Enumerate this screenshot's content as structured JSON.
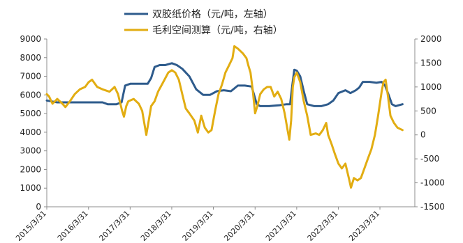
{
  "chart_data": {
    "type": "line",
    "legend": {
      "placement": "top-center"
    },
    "grid": false,
    "x_axis": {
      "type": "date",
      "range": [
        "2015-03-31",
        "2024-01-31"
      ],
      "tick_labels": [
        "2015/3/31",
        "2016/3/31",
        "2017/3/31",
        "2018/3/31",
        "2019/3/31",
        "2020/3/31",
        "2021/3/31",
        "2022/3/31",
        "2023/3/31"
      ]
    },
    "y_left": {
      "range": [
        0,
        9000
      ],
      "tick_labels": [
        "0",
        "1000",
        "2000",
        "3000",
        "4000",
        "5000",
        "6000",
        "7000",
        "8000",
        "9000"
      ]
    },
    "y_right": {
      "range": [
        -1500,
        2000
      ],
      "tick_labels": [
        "-1500",
        "-1000",
        "-500",
        "0",
        "500",
        "1000",
        "1500",
        "2000"
      ]
    },
    "series": [
      {
        "name": "双胶纸价格（元/吨，左轴）",
        "axis": "left",
        "color": "#2e5b8c",
        "points": [
          [
            "2015-03-31",
            5700
          ],
          [
            "2015-05-15",
            5650
          ],
          [
            "2015-07-01",
            5600
          ],
          [
            "2015-10-01",
            5600
          ],
          [
            "2016-01-01",
            5600
          ],
          [
            "2016-04-01",
            5600
          ],
          [
            "2016-08-01",
            5600
          ],
          [
            "2016-09-15",
            5500
          ],
          [
            "2016-12-01",
            5500
          ],
          [
            "2017-01-15",
            5600
          ],
          [
            "2017-02-15",
            6500
          ],
          [
            "2017-04-01",
            6600
          ],
          [
            "2017-06-01",
            6600
          ],
          [
            "2017-09-01",
            6600
          ],
          [
            "2017-10-01",
            6900
          ],
          [
            "2017-11-01",
            7500
          ],
          [
            "2017-12-15",
            7600
          ],
          [
            "2018-02-01",
            7600
          ],
          [
            "2018-04-01",
            7700
          ],
          [
            "2018-05-15",
            7600
          ],
          [
            "2018-07-01",
            7400
          ],
          [
            "2018-09-01",
            7000
          ],
          [
            "2018-11-01",
            6300
          ],
          [
            "2019-01-01",
            6000
          ],
          [
            "2019-03-01",
            6000
          ],
          [
            "2019-05-01",
            6200
          ],
          [
            "2019-07-01",
            6250
          ],
          [
            "2019-09-01",
            6200
          ],
          [
            "2019-11-01",
            6500
          ],
          [
            "2020-01-01",
            6500
          ],
          [
            "2020-03-01",
            6450
          ],
          [
            "2020-04-15",
            5500
          ],
          [
            "2020-05-15",
            5400
          ],
          [
            "2020-08-01",
            5400
          ],
          [
            "2020-11-01",
            5450
          ],
          [
            "2021-01-01",
            5500
          ],
          [
            "2021-02-01",
            5500
          ],
          [
            "2021-02-20",
            6500
          ],
          [
            "2021-03-10",
            7350
          ],
          [
            "2021-04-01",
            7300
          ],
          [
            "2021-05-01",
            7000
          ],
          [
            "2021-06-01",
            6200
          ],
          [
            "2021-07-01",
            5500
          ],
          [
            "2021-09-01",
            5400
          ],
          [
            "2021-11-01",
            5400
          ],
          [
            "2022-01-01",
            5500
          ],
          [
            "2022-02-15",
            5700
          ],
          [
            "2022-04-01",
            6100
          ],
          [
            "2022-06-01",
            6250
          ],
          [
            "2022-07-15",
            6100
          ],
          [
            "2022-09-01",
            6250
          ],
          [
            "2022-10-01",
            6400
          ],
          [
            "2022-11-01",
            6700
          ],
          [
            "2023-01-01",
            6700
          ],
          [
            "2023-03-01",
            6650
          ],
          [
            "2023-04-15",
            6700
          ],
          [
            "2023-05-15",
            6500
          ],
          [
            "2023-06-15",
            6000
          ],
          [
            "2023-07-15",
            5500
          ],
          [
            "2023-08-15",
            5400
          ],
          [
            "2023-10-15",
            5500
          ]
        ]
      },
      {
        "name": "毛利空间测算（元/吨，右轴）",
        "axis": "right",
        "color": "#e2ad12",
        "points": [
          [
            "2015-03-31",
            850
          ],
          [
            "2015-04-20",
            800
          ],
          [
            "2015-05-20",
            650
          ],
          [
            "2015-07-01",
            750
          ],
          [
            "2015-08-15",
            650
          ],
          [
            "2015-09-10",
            580
          ],
          [
            "2015-10-20",
            700
          ],
          [
            "2015-12-01",
            850
          ],
          [
            "2016-01-15",
            950
          ],
          [
            "2016-03-01",
            1000
          ],
          [
            "2016-04-01",
            1100
          ],
          [
            "2016-05-01",
            1150
          ],
          [
            "2016-06-15",
            1000
          ],
          [
            "2016-08-01",
            950
          ],
          [
            "2016-10-01",
            900
          ],
          [
            "2016-11-15",
            1000
          ],
          [
            "2016-12-15",
            850
          ],
          [
            "2017-01-20",
            500
          ],
          [
            "2017-02-05",
            380
          ],
          [
            "2017-02-25",
            600
          ],
          [
            "2017-03-15",
            700
          ],
          [
            "2017-05-01",
            750
          ],
          [
            "2017-06-15",
            650
          ],
          [
            "2017-07-15",
            500
          ],
          [
            "2017-08-20",
            0
          ],
          [
            "2017-09-10",
            300
          ],
          [
            "2017-10-01",
            600
          ],
          [
            "2017-11-01",
            700
          ],
          [
            "2017-12-01",
            900
          ],
          [
            "2018-01-15",
            1100
          ],
          [
            "2018-03-01",
            1300
          ],
          [
            "2018-04-01",
            1350
          ],
          [
            "2018-05-01",
            1300
          ],
          [
            "2018-06-01",
            1150
          ],
          [
            "2018-07-01",
            850
          ],
          [
            "2018-08-01",
            550
          ],
          [
            "2018-09-01",
            450
          ],
          [
            "2018-10-15",
            300
          ],
          [
            "2018-11-15",
            50
          ],
          [
            "2018-12-15",
            400
          ],
          [
            "2019-01-15",
            150
          ],
          [
            "2019-02-15",
            50
          ],
          [
            "2019-03-15",
            100
          ],
          [
            "2019-04-15",
            500
          ],
          [
            "2019-05-15",
            850
          ],
          [
            "2019-06-15",
            1050
          ],
          [
            "2019-07-15",
            1300
          ],
          [
            "2019-08-15",
            1450
          ],
          [
            "2019-09-15",
            1600
          ],
          [
            "2019-10-01",
            1850
          ],
          [
            "2019-11-01",
            1800
          ],
          [
            "2019-12-15",
            1700
          ],
          [
            "2020-01-15",
            1600
          ],
          [
            "2020-02-01",
            1450
          ],
          [
            "2020-02-20",
            1300
          ],
          [
            "2020-03-10",
            950
          ],
          [
            "2020-03-31",
            450
          ],
          [
            "2020-04-20",
            600
          ],
          [
            "2020-05-15",
            850
          ],
          [
            "2020-06-15",
            950
          ],
          [
            "2020-07-15",
            1000
          ],
          [
            "2020-08-15",
            1000
          ],
          [
            "2020-09-15",
            800
          ],
          [
            "2020-10-15",
            900
          ],
          [
            "2020-11-15",
            750
          ],
          [
            "2020-12-15",
            450
          ],
          [
            "2021-01-10",
            100
          ],
          [
            "2021-01-25",
            -100
          ],
          [
            "2021-02-10",
            300
          ],
          [
            "2021-02-25",
            1000
          ],
          [
            "2021-03-10",
            1200
          ],
          [
            "2021-04-01",
            1300
          ],
          [
            "2021-05-01",
            1100
          ],
          [
            "2021-06-01",
            700
          ],
          [
            "2021-07-01",
            400
          ],
          [
            "2021-08-01",
            0
          ],
          [
            "2021-09-15",
            30
          ],
          [
            "2021-10-15",
            0
          ],
          [
            "2021-11-15",
            100
          ],
          [
            "2021-12-15",
            250
          ],
          [
            "2022-01-01",
            0
          ],
          [
            "2022-02-01",
            -200
          ],
          [
            "2022-03-01",
            -400
          ],
          [
            "2022-04-01",
            -600
          ],
          [
            "2022-05-01",
            -700
          ],
          [
            "2022-06-01",
            -600
          ],
          [
            "2022-07-01",
            -900
          ],
          [
            "2022-07-20",
            -1100
          ],
          [
            "2022-08-15",
            -900
          ],
          [
            "2022-09-15",
            -950
          ],
          [
            "2022-10-15",
            -900
          ],
          [
            "2022-11-15",
            -700
          ],
          [
            "2022-12-15",
            -500
          ],
          [
            "2023-01-15",
            -300
          ],
          [
            "2023-02-15",
            0
          ],
          [
            "2023-03-15",
            400
          ],
          [
            "2023-04-15",
            900
          ],
          [
            "2023-05-01",
            1100
          ],
          [
            "2023-05-20",
            1150
          ],
          [
            "2023-06-10",
            800
          ],
          [
            "2023-07-01",
            400
          ],
          [
            "2023-08-01",
            250
          ],
          [
            "2023-09-01",
            150
          ],
          [
            "2023-10-15",
            100
          ]
        ]
      }
    ]
  }
}
